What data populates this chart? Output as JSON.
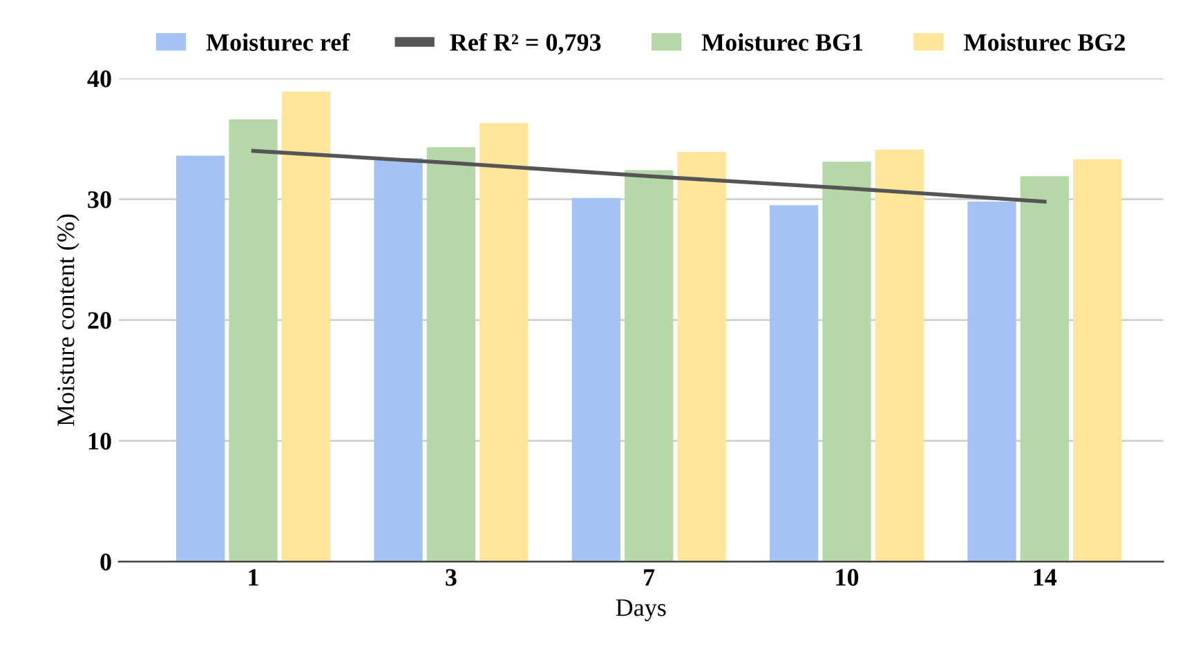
{
  "chart_data": {
    "type": "bar",
    "xlabel": "Days",
    "ylabel": "Moisture content (%)",
    "categories": [
      "1",
      "3",
      "7",
      "10",
      "14"
    ],
    "series": [
      {
        "name": "Moisturec ref",
        "color": "#a4c2f4",
        "values": [
          33.6,
          33.4,
          30.1,
          29.5,
          29.8
        ]
      },
      {
        "name": "Ref R² = 0,793",
        "type": "line",
        "color": "#555555",
        "values": [
          34.0,
          33.0,
          31.9,
          30.9,
          29.8
        ]
      },
      {
        "name": "Moisturec BG1",
        "color": "#b6d7a8",
        "values": [
          36.6,
          34.3,
          32.4,
          33.1,
          31.9
        ]
      },
      {
        "name": "Moisturec BG2",
        "color": "#ffe599",
        "values": [
          38.9,
          36.3,
          33.9,
          34.1,
          33.3
        ]
      }
    ],
    "ylim": [
      0,
      40
    ],
    "yticks": [
      0,
      10,
      20,
      30,
      40
    ],
    "grid": "y",
    "legend": "top"
  }
}
